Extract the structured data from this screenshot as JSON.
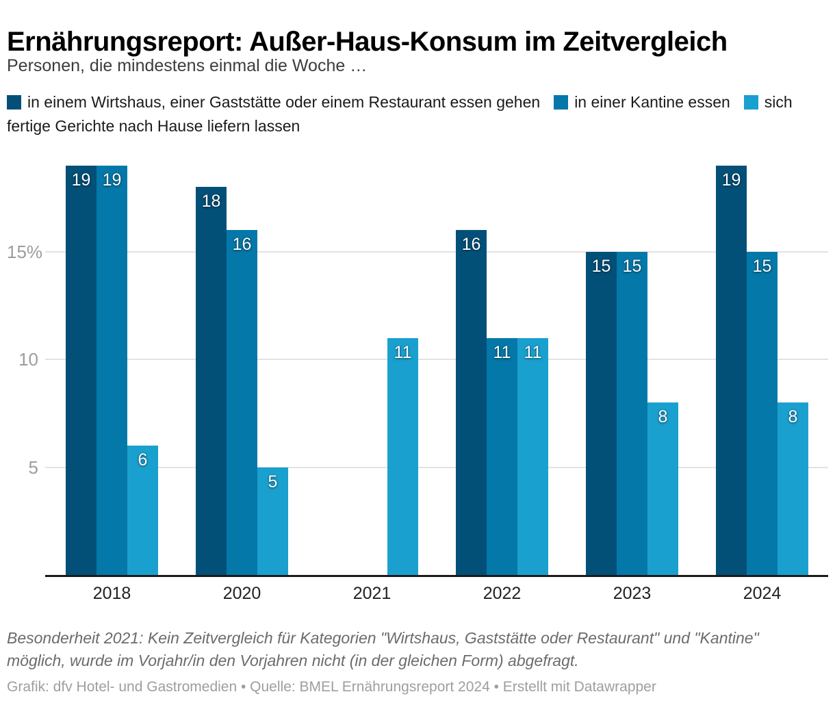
{
  "header": {
    "title": "Ernährungsreport: Außer-Haus-Konsum im Zeitvergleich",
    "subtitle": "Personen, die mindestens einmal die Woche …"
  },
  "legend": [
    {
      "label": "in einem Wirtshaus, einer Gaststätte oder einem Restaurant essen gehen",
      "color": "#025078"
    },
    {
      "label": "in einer Kantine essen",
      "color": "#0478a8"
    },
    {
      "label": "sich fertige Gerichte nach Hause liefern lassen",
      "color": "#1aa0ce"
    }
  ],
  "chart_data": {
    "type": "bar",
    "title": "Ernährungsreport: Außer-Haus-Konsum im Zeitvergleich",
    "subtitle": "Personen, die mindestens einmal die Woche …",
    "categories": [
      "2018",
      "2020",
      "2021",
      "2022",
      "2023",
      "2024"
    ],
    "series": [
      {
        "name": "in einem Wirtshaus, einer Gaststätte oder einem Restaurant essen gehen",
        "color": "#025078",
        "values": [
          19,
          18,
          null,
          16,
          15,
          19
        ]
      },
      {
        "name": "in einer Kantine essen",
        "color": "#0478a8",
        "values": [
          19,
          16,
          null,
          11,
          15,
          15
        ]
      },
      {
        "name": "sich fertige Gerichte nach Hause liefern lassen",
        "color": "#1aa0ce",
        "values": [
          6,
          5,
          11,
          11,
          8,
          8
        ]
      }
    ],
    "unit": "%",
    "ylim": [
      0,
      19
    ],
    "yticks": [
      {
        "value": 5,
        "label": "5"
      },
      {
        "value": 10,
        "label": "10"
      },
      {
        "value": 15,
        "label": "15%"
      }
    ],
    "grid": true,
    "value_labels": true,
    "legend_position": "top"
  },
  "footer": {
    "note": "Besonderheit 2021: Kein Zeitvergleich für Kategorien \"Wirtshaus, Gaststätte oder Restaurant\" und \"Kantine\" möglich, wurde im Vorjahr/in den Vorjahren nicht (in der gleichen Form) abgefragt.",
    "byline": "Grafik: dfv Hotel- und Gastromedien • Quelle: BMEL Ernährungsreport 2024 • Erstellt mit Datawrapper"
  }
}
